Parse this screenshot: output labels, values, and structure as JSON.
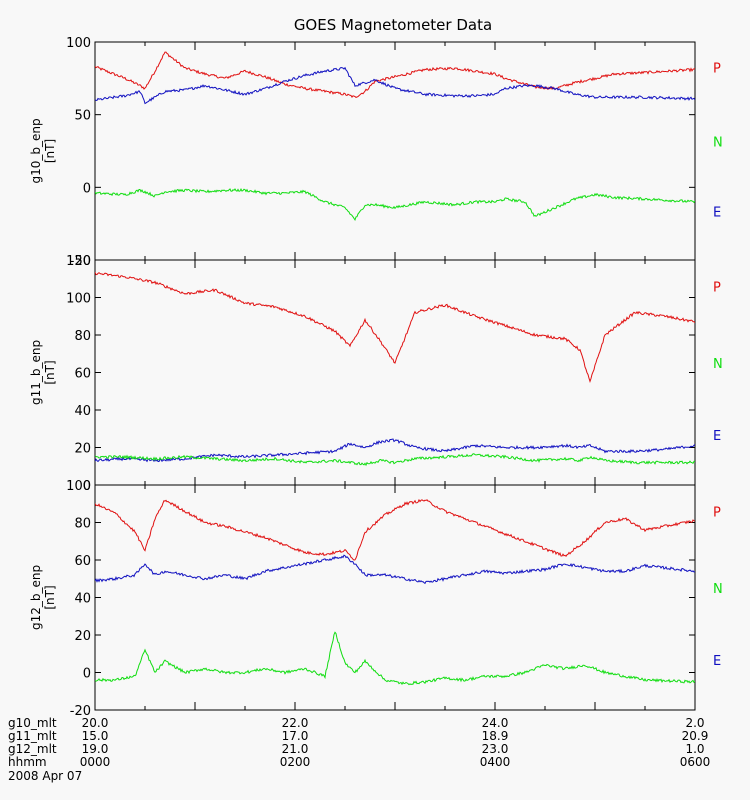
{
  "chart_data": {
    "title": "GOES Magnetometer Data",
    "type": "line",
    "x_range_hours": [
      0,
      6
    ],
    "colors": {
      "P": "#e01010",
      "N": "#10dd10",
      "E": "#1010c0"
    },
    "panels": [
      {
        "ylabel": "g10_b_enp",
        "unit": "[nT]",
        "ylim": [
          -50,
          100
        ],
        "yticks": [
          100,
          50,
          0,
          -50
        ],
        "component_labels": [
          "P",
          "N",
          "E"
        ],
        "series": [
          {
            "name": "P",
            "color": "#e01010",
            "x": [
              0,
              0.3,
              0.45,
              0.5,
              0.6,
              0.7,
              0.9,
              1.1,
              1.3,
              1.5,
              1.7,
              1.9,
              2.1,
              2.3,
              2.5,
              2.6,
              2.7,
              2.8,
              3.0,
              3.3,
              3.6,
              3.8,
              4.0,
              4.1,
              4.3,
              4.4,
              4.6,
              4.8,
              5.0,
              5.2,
              5.5,
              6.0
            ],
            "y": [
              83,
              75,
              70,
              68,
              80,
              93,
              82,
              78,
              75,
              80,
              76,
              71,
              68,
              66,
              64,
              62,
              66,
              73,
              76,
              81,
              82,
              80,
              78,
              75,
              71,
              69,
              68,
              72,
              75,
              78,
              79,
              81
            ]
          },
          {
            "name": "E",
            "color": "#1010c0",
            "x": [
              0,
              0.3,
              0.45,
              0.5,
              0.6,
              0.7,
              0.9,
              1.1,
              1.3,
              1.5,
              1.7,
              1.9,
              2.1,
              2.3,
              2.5,
              2.6,
              2.7,
              2.8,
              3.0,
              3.3,
              3.6,
              3.8,
              4.0,
              4.1,
              4.3,
              4.4,
              4.6,
              4.8,
              5.0,
              5.2,
              5.5,
              6.0
            ],
            "y": [
              60,
              63,
              66,
              58,
              62,
              66,
              67,
              70,
              67,
              64,
              68,
              73,
              77,
              80,
              82,
              70,
              72,
              74,
              68,
              64,
              63,
              63,
              64,
              68,
              70,
              70,
              68,
              64,
              62,
              62,
              62,
              61
            ]
          },
          {
            "name": "N",
            "color": "#10dd10",
            "x": [
              0,
              0.3,
              0.45,
              0.5,
              0.6,
              0.7,
              0.9,
              1.1,
              1.3,
              1.5,
              1.7,
              1.9,
              2.1,
              2.3,
              2.5,
              2.6,
              2.7,
              2.8,
              3.0,
              3.3,
              3.6,
              3.8,
              4.0,
              4.1,
              4.3,
              4.4,
              4.6,
              4.8,
              5.0,
              5.2,
              5.5,
              6.0
            ],
            "y": [
              -4,
              -5,
              -2,
              -3,
              -6,
              -3,
              -2,
              -3,
              -2,
              -2,
              -4,
              -4,
              -3,
              -10,
              -14,
              -22,
              -12,
              -12,
              -14,
              -10,
              -12,
              -10,
              -10,
              -8,
              -10,
              -20,
              -14,
              -8,
              -5,
              -7,
              -8,
              -10
            ]
          }
        ]
      },
      {
        "ylabel": "g11_b_enp",
        "unit": "[nT]",
        "ylim": [
          0,
          120
        ],
        "yticks": [
          120,
          100,
          80,
          60,
          40,
          20,
          0
        ],
        "component_labels": [
          "P",
          "N",
          "E"
        ],
        "series": [
          {
            "name": "P",
            "color": "#e01010",
            "x": [
              0,
              0.3,
              0.6,
              0.9,
              1.2,
              1.5,
              1.8,
              2.1,
              2.4,
              2.55,
              2.7,
              2.85,
              3.0,
              3.2,
              3.5,
              3.8,
              4.1,
              4.4,
              4.7,
              4.85,
              4.95,
              5.1,
              5.4,
              5.7,
              6.0
            ],
            "y": [
              113,
              111,
              108,
              102,
              104,
              97,
              95,
              90,
              82,
              74,
              88,
              77,
              65,
              92,
              96,
              90,
              85,
              80,
              78,
              72,
              55,
              80,
              92,
              90,
              87
            ]
          },
          {
            "name": "E",
            "color": "#1010c0",
            "x": [
              0,
              0.3,
              0.6,
              0.9,
              1.2,
              1.5,
              1.8,
              2.1,
              2.4,
              2.55,
              2.7,
              2.85,
              3.0,
              3.2,
              3.5,
              3.8,
              4.1,
              4.4,
              4.7,
              4.85,
              4.95,
              5.1,
              5.4,
              5.7,
              6.0
            ],
            "y": [
              13,
              14,
              13,
              14,
              16,
              15,
              16,
              17,
              18,
              22,
              20,
              23,
              24,
              20,
              18,
              21,
              20,
              20,
              21,
              20,
              21,
              18,
              18,
              19,
              21
            ]
          },
          {
            "name": "N",
            "color": "#10dd10",
            "x": [
              0,
              0.3,
              0.6,
              0.9,
              1.2,
              1.5,
              1.8,
              2.1,
              2.4,
              2.55,
              2.7,
              2.85,
              3.0,
              3.2,
              3.5,
              3.8,
              4.1,
              4.4,
              4.7,
              4.85,
              4.95,
              5.1,
              5.4,
              5.7,
              6.0
            ],
            "y": [
              15,
              15,
              14,
              15,
              14,
              13,
              14,
              12,
              13,
              12,
              11,
              13,
              12,
              14,
              15,
              16,
              15,
              13,
              14,
              13,
              15,
              13,
              12,
              12,
              12
            ]
          }
        ]
      },
      {
        "ylabel": "g12_b_enp",
        "unit": "[nT]",
        "ylim": [
          -20,
          100
        ],
        "yticks": [
          100,
          80,
          60,
          40,
          20,
          0,
          -20
        ],
        "component_labels": [
          "P",
          "N",
          "E"
        ],
        "series": [
          {
            "name": "P",
            "color": "#e01010",
            "x": [
              0,
              0.2,
              0.4,
              0.5,
              0.6,
              0.7,
              0.9,
              1.1,
              1.3,
              1.5,
              1.7,
              1.9,
              2.1,
              2.3,
              2.5,
              2.6,
              2.7,
              2.9,
              3.1,
              3.3,
              3.5,
              3.7,
              3.9,
              4.1,
              4.3,
              4.5,
              4.7,
              4.9,
              5.1,
              5.3,
              5.5,
              6.0
            ],
            "y": [
              90,
              85,
              75,
              65,
              82,
              92,
              86,
              80,
              78,
              75,
              72,
              68,
              64,
              63,
              65,
              60,
              75,
              84,
              90,
              92,
              86,
              82,
              78,
              74,
              70,
              66,
              62,
              70,
              80,
              82,
              76,
              81
            ]
          },
          {
            "name": "E",
            "color": "#1010c0",
            "x": [
              0,
              0.2,
              0.4,
              0.5,
              0.6,
              0.7,
              0.9,
              1.1,
              1.3,
              1.5,
              1.7,
              1.9,
              2.1,
              2.3,
              2.5,
              2.6,
              2.7,
              2.9,
              3.1,
              3.3,
              3.5,
              3.7,
              3.9,
              4.1,
              4.3,
              4.5,
              4.7,
              4.9,
              5.1,
              5.3,
              5.5,
              6.0
            ],
            "y": [
              49,
              50,
              52,
              58,
              52,
              54,
              52,
              50,
              52,
              50,
              54,
              56,
              58,
              60,
              62,
              58,
              52,
              52,
              50,
              48,
              50,
              52,
              54,
              53,
              54,
              55,
              58,
              56,
              54,
              54,
              57,
              54
            ]
          },
          {
            "name": "N",
            "color": "#10dd10",
            "x": [
              0,
              0.2,
              0.4,
              0.5,
              0.6,
              0.7,
              0.9,
              1.1,
              1.3,
              1.5,
              1.7,
              1.9,
              2.1,
              2.3,
              2.4,
              2.5,
              2.6,
              2.7,
              2.9,
              3.1,
              3.3,
              3.5,
              3.7,
              3.9,
              4.1,
              4.3,
              4.5,
              4.7,
              4.9,
              5.1,
              5.3,
              5.5,
              6.0
            ],
            "y": [
              -4,
              -4,
              -2,
              12,
              0,
              6,
              0,
              2,
              0,
              0,
              2,
              0,
              2,
              -2,
              22,
              5,
              0,
              6,
              -4,
              -6,
              -5,
              -3,
              -4,
              -2,
              -2,
              0,
              4,
              2,
              4,
              0,
              -2,
              -4,
              -5
            ]
          }
        ]
      }
    ],
    "x_axis_rows": [
      {
        "label": "g10_mlt",
        "values": [
          "20.0",
          "22.0",
          "24.0",
          "2.0"
        ]
      },
      {
        "label": "g11_mlt",
        "values": [
          "15.0",
          "17.0",
          "18.9",
          "20.9"
        ]
      },
      {
        "label": "g12_mlt",
        "values": [
          "19.0",
          "21.0",
          "23.0",
          "1.0"
        ]
      },
      {
        "label": "hhmm",
        "values": [
          "0000",
          "0200",
          "0400",
          "0600"
        ]
      }
    ],
    "date": "2008 Apr 07"
  }
}
